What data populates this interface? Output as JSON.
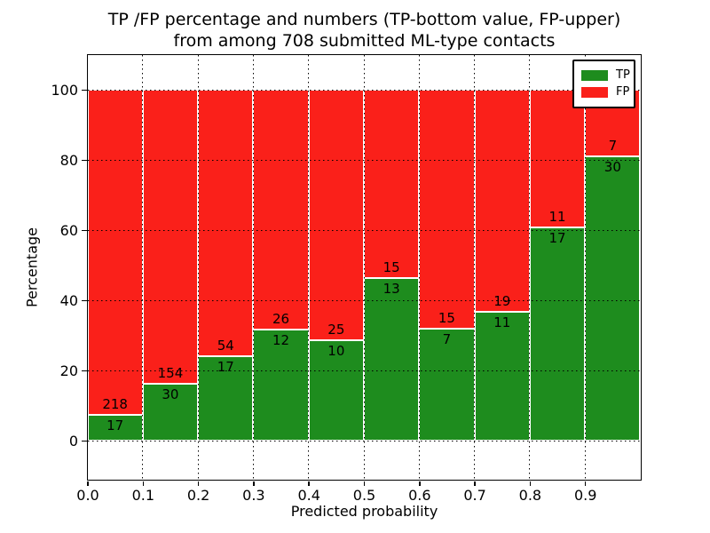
{
  "figure": {
    "title_line1": "TP /FP percentage and numbers (TP-bottom value, FP-upper)",
    "title_line2": "from among 708 submitted ML-type contacts"
  },
  "legend": {
    "items": [
      {
        "label": "TP",
        "color": "#1e8c1e"
      },
      {
        "label": "FP",
        "color": "#fa201a"
      }
    ]
  },
  "chart_data": {
    "type": "bar",
    "stacked": true,
    "title": "TP /FP percentage and numbers (TP-bottom value, FP-upper)\nfrom among 708 submitted ML-type contacts",
    "xlabel": "Predicted probability",
    "ylabel": "Percentage",
    "total_contacts": 708,
    "x_tick_labels": [
      "0.0",
      "0.1",
      "0.2",
      "0.3",
      "0.4",
      "0.5",
      "0.6",
      "0.7",
      "0.8",
      "0.9"
    ],
    "y_tick_values": [
      0,
      20,
      40,
      60,
      80,
      100
    ],
    "xlim": [
      0.0,
      1.0
    ],
    "ylim": [
      -11,
      110
    ],
    "bar_width": 0.1,
    "grid": "dotted",
    "legend_position": "upper-right",
    "categories": [
      "0.0-0.1",
      "0.1-0.2",
      "0.2-0.3",
      "0.3-0.4",
      "0.4-0.5",
      "0.5-0.6",
      "0.6-0.7",
      "0.7-0.8",
      "0.8-0.9",
      "0.9-1.0"
    ],
    "series": [
      {
        "name": "TP",
        "color": "#1e8c1e",
        "counts": [
          17,
          30,
          17,
          12,
          10,
          13,
          7,
          11,
          17,
          30
        ]
      },
      {
        "name": "FP",
        "color": "#fa201a",
        "counts": [
          218,
          154,
          54,
          26,
          25,
          15,
          15,
          19,
          11,
          7
        ]
      }
    ],
    "tp_percent_heights": [
      7.2,
      16.3,
      23.9,
      31.6,
      28.6,
      46.4,
      31.8,
      36.7,
      60.7,
      81.1
    ]
  }
}
